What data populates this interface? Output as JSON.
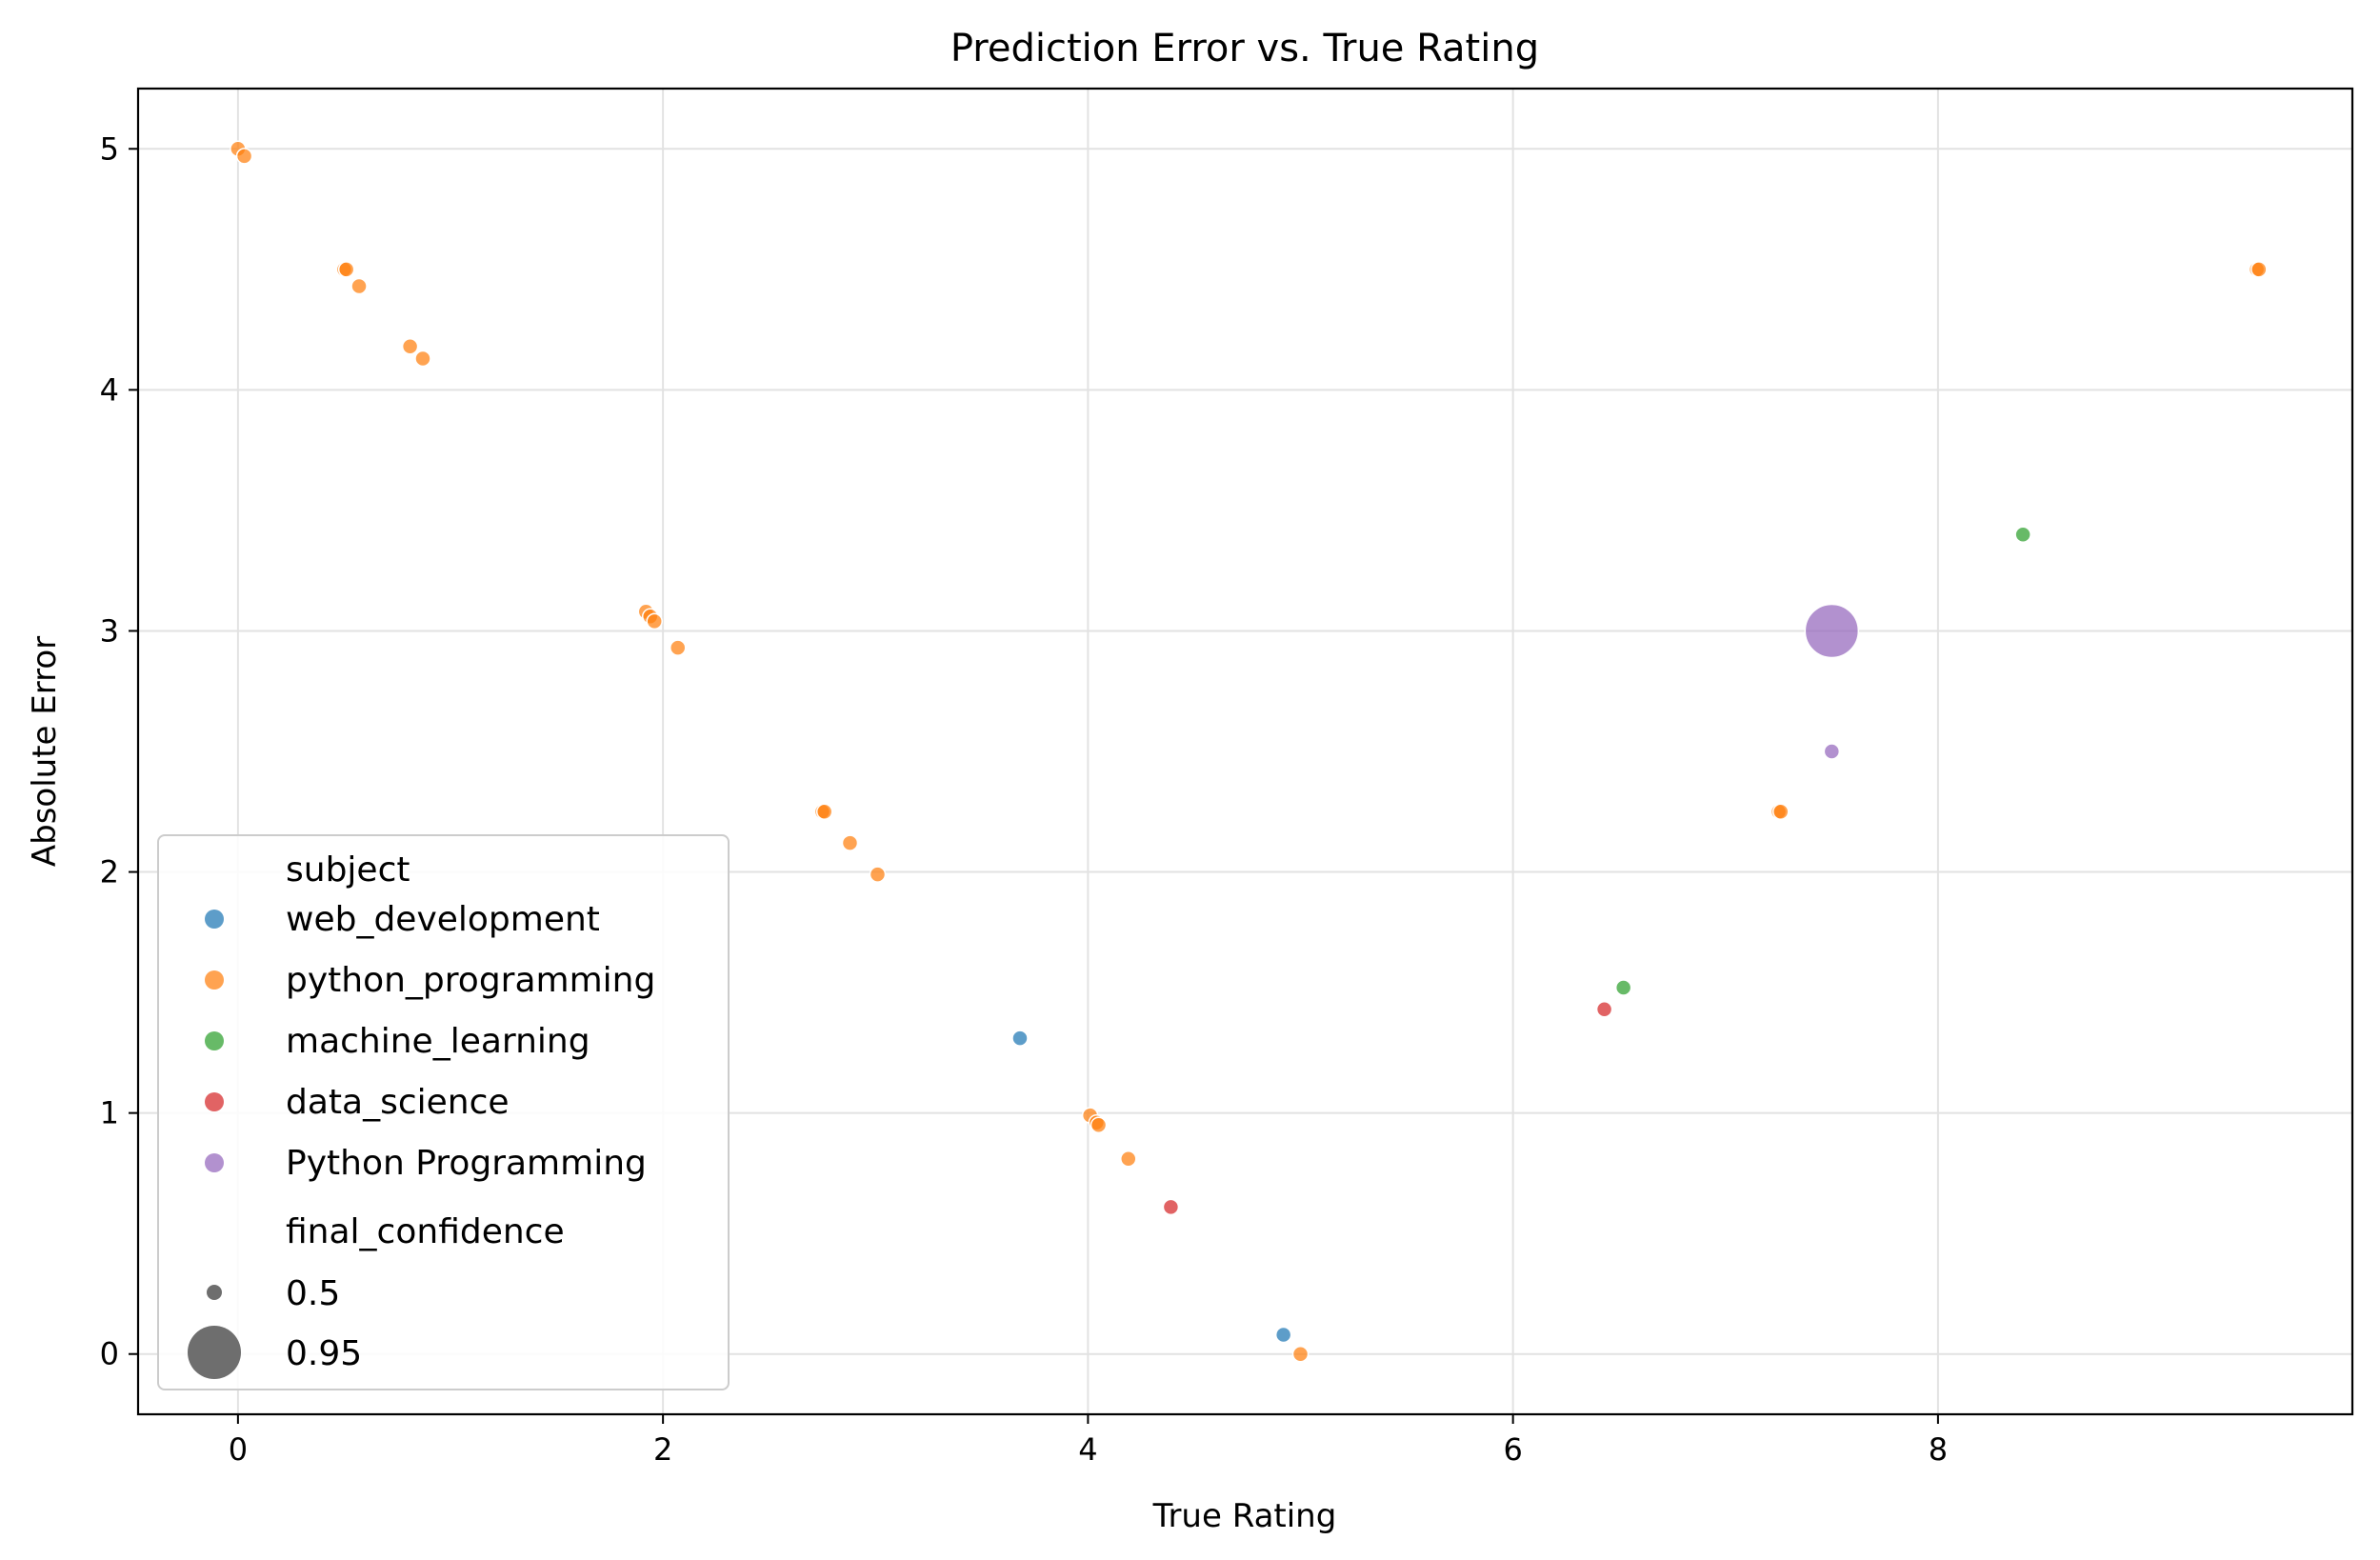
{
  "chart_data": {
    "type": "scatter",
    "title": "Prediction Error vs. True Rating",
    "xlabel": "True Rating",
    "ylabel": "Absolute Error",
    "xlim": [
      -0.47,
      9.95
    ],
    "ylim": [
      -0.25,
      5.25
    ],
    "xticks": [
      0,
      2,
      4,
      6,
      8
    ],
    "yticks": [
      0,
      1,
      2,
      3,
      4,
      5
    ],
    "grid": true,
    "legend_position": "lower-left",
    "hue_title": "subject",
    "size_title": "final_confidence",
    "size_legend": [
      {
        "label": "0.5",
        "value": 0.5
      },
      {
        "label": "0.95",
        "value": 0.95
      }
    ],
    "series": [
      {
        "name": "web_development",
        "color": "#1f77b4",
        "points": [
          {
            "x": 3.68,
            "y": 1.31,
            "size": 0.5
          },
          {
            "x": 4.92,
            "y": 0.08,
            "size": 0.5
          }
        ]
      },
      {
        "name": "python_programming",
        "color": "#ff7f0e",
        "points": [
          {
            "x": 0.0,
            "y": 5.0,
            "size": 0.5
          },
          {
            "x": 0.03,
            "y": 4.97,
            "size": 0.5
          },
          {
            "x": 0.5,
            "y": 4.5,
            "size": 0.5
          },
          {
            "x": 0.51,
            "y": 4.5,
            "size": 0.5
          },
          {
            "x": 0.57,
            "y": 4.43,
            "size": 0.5
          },
          {
            "x": 0.81,
            "y": 4.18,
            "size": 0.5
          },
          {
            "x": 0.87,
            "y": 4.13,
            "size": 0.5
          },
          {
            "x": 1.92,
            "y": 3.08,
            "size": 0.5
          },
          {
            "x": 1.94,
            "y": 3.06,
            "size": 0.5
          },
          {
            "x": 1.96,
            "y": 3.04,
            "size": 0.5
          },
          {
            "x": 2.07,
            "y": 2.93,
            "size": 0.5
          },
          {
            "x": 2.75,
            "y": 2.25,
            "size": 0.5
          },
          {
            "x": 2.76,
            "y": 2.25,
            "size": 0.5
          },
          {
            "x": 2.88,
            "y": 2.12,
            "size": 0.5
          },
          {
            "x": 3.01,
            "y": 1.99,
            "size": 0.5
          },
          {
            "x": 4.01,
            "y": 0.99,
            "size": 0.5
          },
          {
            "x": 4.04,
            "y": 0.96,
            "size": 0.5
          },
          {
            "x": 4.05,
            "y": 0.95,
            "size": 0.5
          },
          {
            "x": 4.19,
            "y": 0.81,
            "size": 0.5
          },
          {
            "x": 5.0,
            "y": 0.0,
            "size": 0.5
          },
          {
            "x": 7.25,
            "y": 2.25,
            "size": 0.5
          },
          {
            "x": 7.26,
            "y": 2.25,
            "size": 0.5
          },
          {
            "x": 9.5,
            "y": 4.5,
            "size": 0.5
          },
          {
            "x": 9.51,
            "y": 4.5,
            "size": 0.5
          }
        ]
      },
      {
        "name": "machine_learning",
        "color": "#2ca02c",
        "points": [
          {
            "x": 6.52,
            "y": 1.52,
            "size": 0.5
          },
          {
            "x": 8.4,
            "y": 3.4,
            "size": 0.5
          }
        ]
      },
      {
        "name": "data_science",
        "color": "#d62728",
        "points": [
          {
            "x": 4.39,
            "y": 0.61,
            "size": 0.5
          },
          {
            "x": 6.43,
            "y": 1.43,
            "size": 0.5
          }
        ]
      },
      {
        "name": "Python Programming",
        "color": "#9467bd",
        "points": [
          {
            "x": 7.5,
            "y": 3.0,
            "size": 0.95
          },
          {
            "x": 7.5,
            "y": 2.5,
            "size": 0.5
          }
        ]
      }
    ]
  }
}
